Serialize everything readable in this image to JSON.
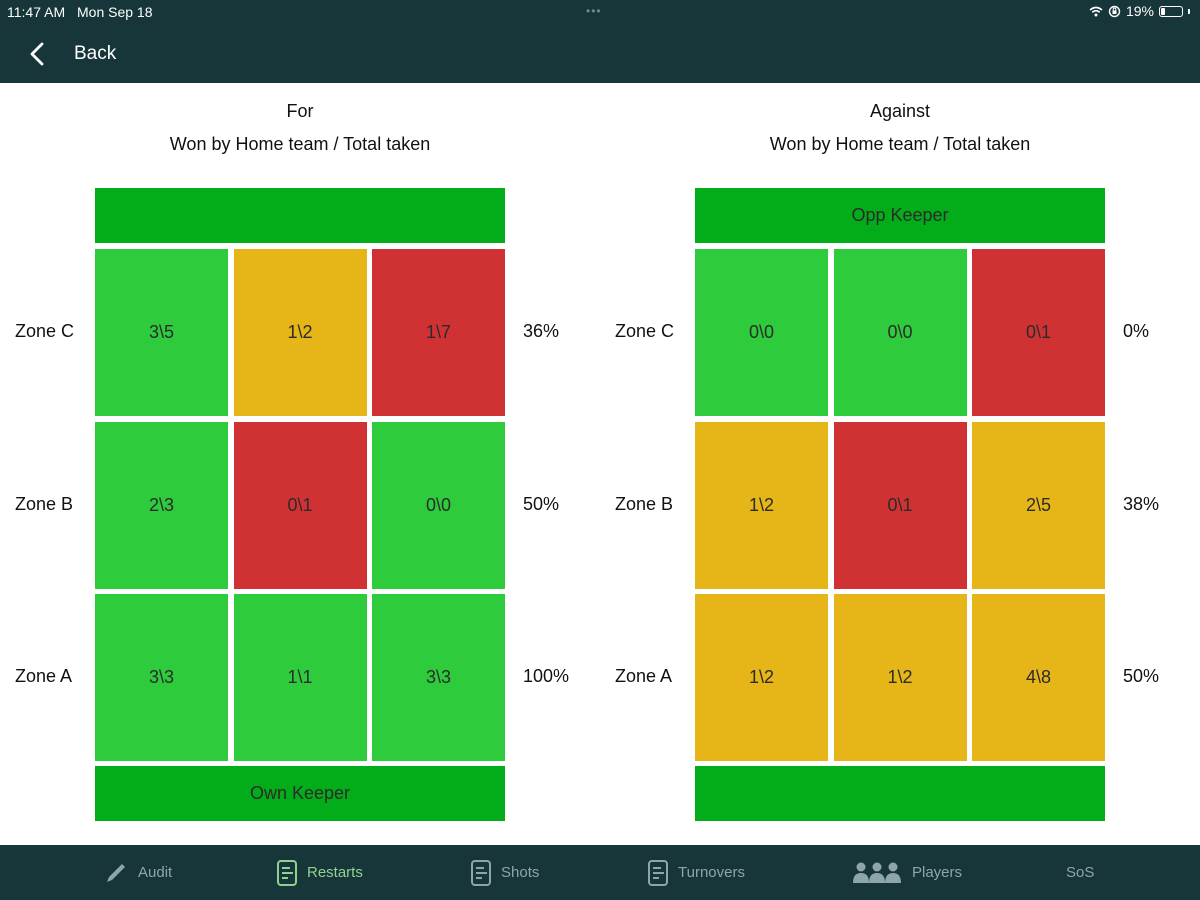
{
  "status": {
    "time": "11:47 AM",
    "date": "Mon Sep 18",
    "battery": "19%",
    "battery_level": 0.19
  },
  "nav": {
    "back_label": "Back"
  },
  "colors": {
    "keeper": "#03ad19",
    "green": "#2ecc3c",
    "amber": "#e6b518",
    "red": "#d03234"
  },
  "panels": [
    {
      "title": "For",
      "subtitle": "Won by Home team / Total taken",
      "top_keeper": "",
      "bottom_keeper": "Own Keeper",
      "rows": [
        {
          "zone": "Zone C",
          "pct": "36%",
          "cells": [
            {
              "value": "3\\5",
              "status": "green"
            },
            {
              "value": "1\\2",
              "status": "amber"
            },
            {
              "value": "1\\7",
              "status": "red"
            }
          ]
        },
        {
          "zone": "Zone B",
          "pct": "50%",
          "cells": [
            {
              "value": "2\\3",
              "status": "green"
            },
            {
              "value": "0\\1",
              "status": "red"
            },
            {
              "value": "0\\0",
              "status": "green"
            }
          ]
        },
        {
          "zone": "Zone A",
          "pct": "100%",
          "cells": [
            {
              "value": "3\\3",
              "status": "green"
            },
            {
              "value": "1\\1",
              "status": "green"
            },
            {
              "value": "3\\3",
              "status": "green"
            }
          ]
        }
      ]
    },
    {
      "title": "Against",
      "subtitle": "Won by Home team / Total taken",
      "top_keeper": "Opp Keeper",
      "bottom_keeper": "",
      "rows": [
        {
          "zone": "Zone C",
          "pct": "0%",
          "cells": [
            {
              "value": "0\\0",
              "status": "green"
            },
            {
              "value": "0\\0",
              "status": "green"
            },
            {
              "value": "0\\1",
              "status": "red"
            }
          ]
        },
        {
          "zone": "Zone B",
          "pct": "38%",
          "cells": [
            {
              "value": "1\\2",
              "status": "amber"
            },
            {
              "value": "0\\1",
              "status": "red"
            },
            {
              "value": "2\\5",
              "status": "amber"
            }
          ]
        },
        {
          "zone": "Zone A",
          "pct": "50%",
          "cells": [
            {
              "value": "1\\2",
              "status": "amber"
            },
            {
              "value": "1\\2",
              "status": "amber"
            },
            {
              "value": "4\\8",
              "status": "amber"
            }
          ]
        }
      ]
    }
  ],
  "tabs": [
    {
      "label": "Audit",
      "icon": "pencil-icon",
      "active": false
    },
    {
      "label": "Restarts",
      "icon": "document-icon",
      "active": true
    },
    {
      "label": "Shots",
      "icon": "document-icon",
      "active": false
    },
    {
      "label": "Turnovers",
      "icon": "document-icon",
      "active": false
    },
    {
      "label": "Players",
      "icon": "players-icon",
      "active": false
    },
    {
      "label": "SoS",
      "icon": "",
      "active": false
    }
  ]
}
